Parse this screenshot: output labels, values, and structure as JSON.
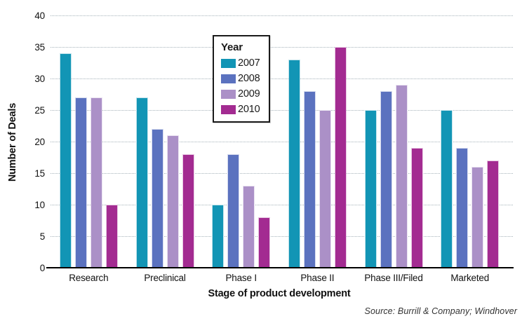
{
  "chart_data": {
    "type": "bar",
    "title": "",
    "categories": [
      "Research",
      "Preclinical",
      "Phase I",
      "Phase II",
      "Phase III/Filed",
      "Marketed"
    ],
    "series": [
      {
        "name": "2007",
        "color": "#1295B5",
        "values": [
          34,
          27,
          10,
          33,
          25,
          25
        ]
      },
      {
        "name": "2008",
        "color": "#5B72BF",
        "values": [
          27,
          22,
          18,
          28,
          28,
          19
        ]
      },
      {
        "name": "2009",
        "color": "#AB90C7",
        "values": [
          27,
          21,
          13,
          25,
          29,
          16
        ]
      },
      {
        "name": "2010",
        "color": "#A32B91",
        "values": [
          10,
          18,
          8,
          35,
          19,
          17
        ]
      }
    ],
    "xlabel": "Stage of product development",
    "ylabel": "Number of Deals",
    "ylim": [
      0,
      40
    ],
    "yticks": [
      0,
      5,
      10,
      15,
      20,
      25,
      30,
      35,
      40
    ],
    "grid": "horizontal-dotted",
    "legend": {
      "title": "Year",
      "position": "upper-left-of-center"
    },
    "source_note": "Source: Burrill & Company; Windhover"
  }
}
